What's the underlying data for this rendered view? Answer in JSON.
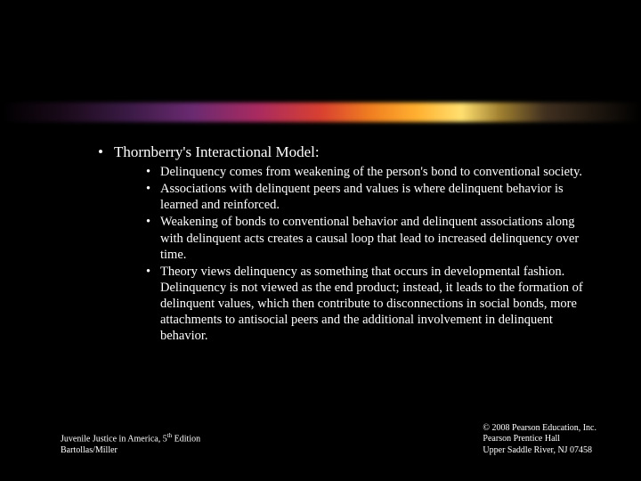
{
  "slide": {
    "main_title": "Thornberry's Interactional Model:",
    "sub_points": [
      "Delinquency comes from weakening of the person's bond to conventional society.",
      "Associations with delinquent peers and values is where delinquent behavior is learned and reinforced.",
      "Weakening of bonds to conventional behavior and delinquent associations along with delinquent acts creates a causal loop that lead to increased delinquency over time.",
      "Theory views delinquency as something that occurs in developmental fashion.   Delinquency is not viewed as the end product; instead, it leads to the formation of delinquent values, which then contribute to disconnections in social bonds, more attachments to antisocial peers and the additional involvement in delinquent behavior."
    ]
  },
  "footer": {
    "left_line1_pre": "Juvenile Justice in America, 5",
    "left_line1_sup": "th",
    "left_line1_post": " Edition",
    "left_line2": "Bartollas/Miller",
    "right_line1": "© 2008 Pearson Education, Inc.",
    "right_line2": "Pearson Prentice Hall",
    "right_line3": "Upper Saddle River, NJ 07458"
  },
  "style": {
    "background_color": "#000000",
    "text_color": "#ffffff",
    "main_fontsize": 17,
    "sub_fontsize": 14.5,
    "footer_fontsize": 10,
    "gradient_colors": [
      "#000000",
      "#1a0a1a",
      "#3a1a45",
      "#6a2a70",
      "#a82a60",
      "#d84030",
      "#f08020",
      "#ffb030",
      "#ffe070",
      "#a08030",
      "#403020",
      "#000000"
    ],
    "font_family": "Times New Roman"
  }
}
